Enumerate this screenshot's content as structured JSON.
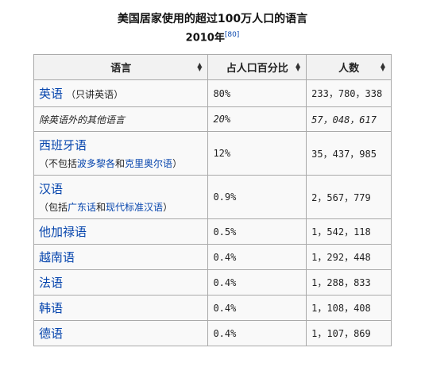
{
  "caption": {
    "title": "美国居家使用的超过100万人口的语言",
    "year": "2010年",
    "ref": "[80]"
  },
  "table": {
    "headers": [
      "语言",
      "占人口百分比",
      "人数"
    ],
    "rows": [
      {
        "lang": "英语",
        "note": "（只讲英语）",
        "percent": "80%",
        "count": "233，780，338"
      },
      {
        "lang": "除英语外的其他语言",
        "percent": "20%",
        "count": "57，048，617"
      },
      {
        "lang": "西班牙语",
        "note_prefix": "（不包括",
        "note_link1": "波多黎各",
        "note_mid": "和",
        "note_link2": "克里奥尔语",
        "note_suffix": "）",
        "percent": "12%",
        "count": "35，437，985"
      },
      {
        "lang": "汉语",
        "note_prefix": "（包括",
        "note_link1": "广东话",
        "note_mid": "和",
        "note_link2": "现代标准汉语",
        "note_suffix": "）",
        "percent": "0.9%",
        "count": "2，567，779"
      },
      {
        "lang": "他加禄语",
        "percent": "0.5%",
        "count": "1，542，118"
      },
      {
        "lang": "越南语",
        "percent": "0.4%",
        "count": "1，292，448"
      },
      {
        "lang": "法语",
        "percent": "0.4%",
        "count": "1，288，833"
      },
      {
        "lang": "韩语",
        "percent": "0.4%",
        "count": "1，108，408"
      },
      {
        "lang": "德语",
        "percent": "0.4%",
        "count": "1，107，869"
      }
    ]
  },
  "icons": {
    "sort": "sort-arrows-icon"
  }
}
